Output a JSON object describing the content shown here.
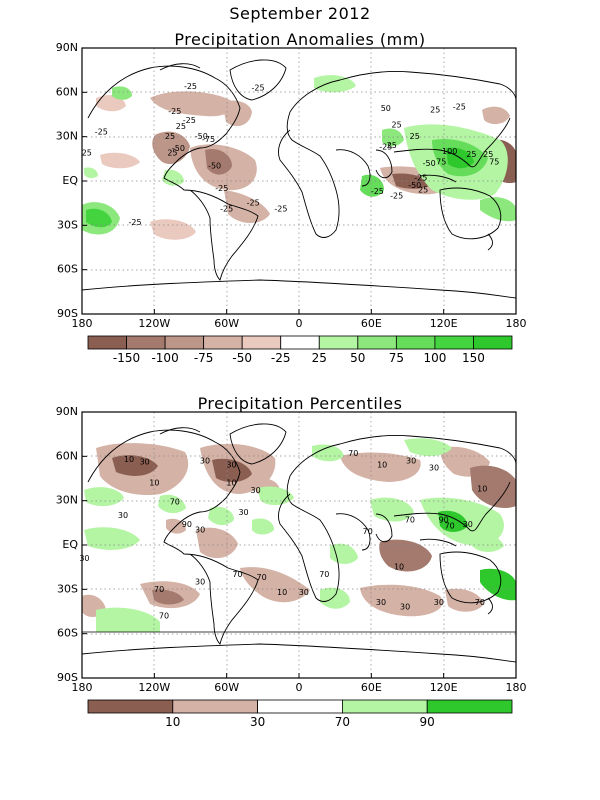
{
  "title_line1": "September 2012",
  "panels": [
    {
      "title": "Precipitation Anomalies (mm)",
      "lat_ticks": [
        "90N",
        "60N",
        "30N",
        "EQ",
        "30S",
        "60S",
        "90S"
      ],
      "lon_ticks": [
        "180",
        "120W",
        "60W",
        "0",
        "60E",
        "120E",
        "180"
      ],
      "colorbar": {
        "colors": [
          "#8b5e52",
          "#a47a6e",
          "#bd968a",
          "#d4b2a6",
          "#eac9bf",
          "#ffffff",
          "#b4f5a4",
          "#8ce87c",
          "#66dd5a",
          "#44d440",
          "#2ec82c"
        ],
        "labels": [
          "-150",
          "-100",
          "-75",
          "-50",
          "-25",
          "25",
          "50",
          "75",
          "100",
          "150"
        ]
      },
      "contour_labels": [
        {
          "text": "-25",
          "lon": -164,
          "lat": 33
        },
        {
          "text": "-25",
          "lon": -90,
          "lat": 64
        },
        {
          "text": "-25",
          "lon": -34,
          "lat": 63
        },
        {
          "text": "-25",
          "lon": -103,
          "lat": 47
        },
        {
          "text": "25",
          "lon": -98,
          "lat": 37
        },
        {
          "text": "25",
          "lon": -107,
          "lat": 30
        },
        {
          "text": "-25",
          "lon": -91,
          "lat": 41
        },
        {
          "text": "-50",
          "lon": -81,
          "lat": 30
        },
        {
          "text": "-75",
          "lon": -75,
          "lat": 28
        },
        {
          "text": "-50",
          "lon": -100,
          "lat": 22
        },
        {
          "text": "25",
          "lon": -105,
          "lat": 19
        },
        {
          "text": "-50",
          "lon": -70,
          "lat": 10
        },
        {
          "text": "25",
          "lon": -176,
          "lat": 19
        },
        {
          "text": "-25",
          "lon": -64,
          "lat": -5
        },
        {
          "text": "-25",
          "lon": -38,
          "lat": -15
        },
        {
          "text": "-25",
          "lon": -60,
          "lat": -19
        },
        {
          "text": "-25",
          "lon": -15,
          "lat": -19
        },
        {
          "text": "-25",
          "lon": -136,
          "lat": -28
        },
        {
          "text": "50",
          "lon": 72,
          "lat": 49
        },
        {
          "text": "25",
          "lon": 81,
          "lat": 38
        },
        {
          "text": "25",
          "lon": 77,
          "lat": 24
        },
        {
          "text": "25",
          "lon": 96,
          "lat": 30
        },
        {
          "text": "25",
          "lon": 113,
          "lat": 48
        },
        {
          "text": "-25",
          "lon": 133,
          "lat": 50
        },
        {
          "text": "-25",
          "lon": 72,
          "lat": 23
        },
        {
          "text": "-50",
          "lon": 108,
          "lat": 12
        },
        {
          "text": "100",
          "lon": 125,
          "lat": 20
        },
        {
          "text": "75",
          "lon": 118,
          "lat": 13
        },
        {
          "text": "25",
          "lon": 143,
          "lat": 18
        },
        {
          "text": "25",
          "lon": 157,
          "lat": 18
        },
        {
          "text": "75",
          "lon": 162,
          "lat": 13
        },
        {
          "text": "-25",
          "lon": 101,
          "lat": 2
        },
        {
          "text": "-50",
          "lon": 96,
          "lat": -3
        },
        {
          "text": "25",
          "lon": 103,
          "lat": -6
        },
        {
          "text": "-25",
          "lon": 65,
          "lat": -7
        },
        {
          "text": "-25",
          "lon": 81,
          "lat": -10
        }
      ]
    },
    {
      "title": "Precipitation Percentiles",
      "lat_ticks": [
        "90N",
        "60N",
        "30N",
        "EQ",
        "30S",
        "60S",
        "90S"
      ],
      "lon_ticks": [
        "180",
        "120W",
        "60W",
        "0",
        "60E",
        "120E",
        "180"
      ],
      "colorbar": {
        "colors": [
          "#8b5e52",
          "#d4b2a6",
          "#ffffff",
          "#b4f5a4",
          "#2ec82c"
        ],
        "labels": [
          "10",
          "30",
          "70",
          "90"
        ]
      },
      "contour_labels": [
        {
          "text": "10",
          "lon": -141,
          "lat": 58
        },
        {
          "text": "30",
          "lon": -128,
          "lat": 56
        },
        {
          "text": "10",
          "lon": -120,
          "lat": 42
        },
        {
          "text": "30",
          "lon": -78,
          "lat": 57
        },
        {
          "text": "30",
          "lon": -56,
          "lat": 54
        },
        {
          "text": "10",
          "lon": -56,
          "lat": 42
        },
        {
          "text": "30",
          "lon": -36,
          "lat": 37
        },
        {
          "text": "70",
          "lon": -103,
          "lat": 29
        },
        {
          "text": "30",
          "lon": -146,
          "lat": 20
        },
        {
          "text": "30",
          "lon": -46,
          "lat": 22
        },
        {
          "text": "90",
          "lon": -93,
          "lat": 14
        },
        {
          "text": "30",
          "lon": -82,
          "lat": 10
        },
        {
          "text": "30",
          "lon": -178,
          "lat": -9
        },
        {
          "text": "30",
          "lon": -82,
          "lat": -25
        },
        {
          "text": "70",
          "lon": -116,
          "lat": -30
        },
        {
          "text": "10",
          "lon": -14,
          "lat": -32
        },
        {
          "text": "70",
          "lon": -112,
          "lat": -48
        },
        {
          "text": "70",
          "lon": -51,
          "lat": -20
        },
        {
          "text": "70",
          "lon": -31,
          "lat": -22
        },
        {
          "text": "30",
          "lon": 4,
          "lat": -32
        },
        {
          "text": "70",
          "lon": 21,
          "lat": -20
        },
        {
          "text": "70",
          "lon": 45,
          "lat": 62
        },
        {
          "text": "10",
          "lon": 69,
          "lat": 54
        },
        {
          "text": "30",
          "lon": 93,
          "lat": 57
        },
        {
          "text": "30",
          "lon": 112,
          "lat": 52
        },
        {
          "text": "10",
          "lon": 152,
          "lat": 38
        },
        {
          "text": "70",
          "lon": 57,
          "lat": 9
        },
        {
          "text": "70",
          "lon": 92,
          "lat": 17
        },
        {
          "text": "90",
          "lon": 120,
          "lat": 17
        },
        {
          "text": "70",
          "lon": 125,
          "lat": 13
        },
        {
          "text": "30",
          "lon": 140,
          "lat": 14
        },
        {
          "text": "10",
          "lon": 83,
          "lat": -15
        },
        {
          "text": "30",
          "lon": 68,
          "lat": -39
        },
        {
          "text": "30",
          "lon": 88,
          "lat": -42
        },
        {
          "text": "30",
          "lon": 116,
          "lat": -39
        },
        {
          "text": "70",
          "lon": 150,
          "lat": -39
        }
      ]
    }
  ]
}
